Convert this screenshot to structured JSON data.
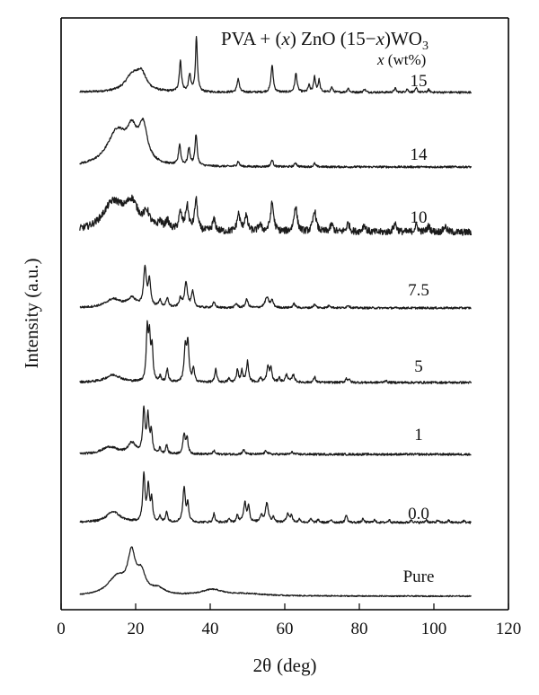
{
  "chart_data": {
    "type": "line",
    "title": "",
    "xlabel": {
      "symbol": "2θ",
      "unit": "(deg)"
    },
    "ylabel": "Intensity (a.u.)",
    "xlim": [
      0,
      120
    ],
    "xticks": [
      "0",
      "20",
      "40",
      "60",
      "80",
      "100",
      "120"
    ],
    "legend": {
      "parts": [
        "PVA + (",
        "x",
        ") ZnO (15−",
        "x",
        ")WO",
        "3"
      ],
      "subtitle_parts": [
        "x",
        " (wt%)"
      ]
    },
    "grid": false,
    "offset_traces": true,
    "series": [
      {
        "name": "15",
        "base": 0.03,
        "peaks": [
          [
            19,
            0.45,
            2.2
          ],
          [
            21.5,
            0.5,
            1.6
          ],
          [
            32,
            0.9,
            0.35
          ],
          [
            34.5,
            0.5,
            0.35
          ],
          [
            36.3,
            1.6,
            0.3
          ],
          [
            47.5,
            0.4,
            0.35
          ],
          [
            56.6,
            0.8,
            0.35
          ],
          [
            63,
            0.55,
            0.35
          ],
          [
            66.5,
            0.2,
            0.3
          ],
          [
            68,
            0.45,
            0.3
          ],
          [
            69.2,
            0.35,
            0.3
          ],
          [
            72.6,
            0.15,
            0.3
          ],
          [
            77,
            0.12,
            0.3
          ],
          [
            81.4,
            0.1,
            0.3
          ],
          [
            89.6,
            0.12,
            0.3
          ],
          [
            92.8,
            0.1,
            0.3
          ],
          [
            95.3,
            0.12,
            0.3
          ],
          [
            98.6,
            0.08,
            0.3
          ]
        ],
        "noise": 0.03
      },
      {
        "name": "14",
        "base": 0.0,
        "peaks": [
          [
            15,
            1.0,
            3.2
          ],
          [
            19,
            0.8,
            1.6
          ],
          [
            22,
            1.05,
            1.4
          ],
          [
            31.8,
            0.6,
            0.35
          ],
          [
            34.3,
            0.5,
            0.35
          ],
          [
            36.2,
            0.9,
            0.35
          ],
          [
            47.5,
            0.15,
            0.35
          ],
          [
            56.6,
            0.2,
            0.35
          ],
          [
            62.9,
            0.12,
            0.35
          ],
          [
            68,
            0.1,
            0.3
          ]
        ],
        "noise": 0.03
      },
      {
        "name": "10",
        "base": 0.1,
        "peaks": [
          [
            14,
            1.0,
            3.4
          ],
          [
            19,
            0.85,
            2.0
          ],
          [
            23,
            0.5,
            1.0
          ],
          [
            26.5,
            0.25,
            0.6
          ],
          [
            28.5,
            0.3,
            0.6
          ],
          [
            32,
            0.6,
            0.5
          ],
          [
            33.8,
            0.85,
            0.5
          ],
          [
            36.2,
            1.1,
            0.45
          ],
          [
            41,
            0.4,
            0.5
          ],
          [
            47.6,
            0.6,
            0.5
          ],
          [
            49.6,
            0.55,
            0.5
          ],
          [
            53.3,
            0.25,
            0.5
          ],
          [
            56.6,
            1.0,
            0.5
          ],
          [
            62.9,
            0.9,
            0.5
          ],
          [
            68,
            0.75,
            0.5
          ],
          [
            72.6,
            0.25,
            0.5
          ],
          [
            77,
            0.3,
            0.5
          ],
          [
            81.3,
            0.25,
            0.5
          ],
          [
            89.6,
            0.3,
            0.5
          ],
          [
            95.3,
            0.25,
            0.5
          ],
          [
            98.6,
            0.2,
            0.5
          ],
          [
            103,
            0.2,
            0.5
          ]
        ],
        "noise": 0.12
      },
      {
        "name": "7.5",
        "base": 0.0,
        "peaks": [
          [
            14,
            0.25,
            2.5
          ],
          [
            19,
            0.25,
            1.5
          ],
          [
            22.5,
            1.1,
            0.45
          ],
          [
            23.7,
            0.75,
            0.4
          ],
          [
            26.5,
            0.2,
            0.4
          ],
          [
            28.5,
            0.25,
            0.4
          ],
          [
            32,
            0.25,
            0.4
          ],
          [
            33.5,
            0.75,
            0.45
          ],
          [
            35.3,
            0.45,
            0.4
          ],
          [
            41,
            0.15,
            0.4
          ],
          [
            47,
            0.12,
            0.4
          ],
          [
            49.8,
            0.25,
            0.4
          ],
          [
            55.2,
            0.3,
            0.6
          ],
          [
            56.6,
            0.2,
            0.4
          ],
          [
            62.5,
            0.12,
            0.4
          ],
          [
            68,
            0.1,
            0.4
          ],
          [
            72,
            0.08,
            0.4
          ],
          [
            77,
            0.08,
            0.4
          ]
        ],
        "noise": 0.03
      },
      {
        "name": "5",
        "base": 0.0,
        "peaks": [
          [
            14,
            0.2,
            2.5
          ],
          [
            23.1,
            1.35,
            0.3
          ],
          [
            23.7,
            1.1,
            0.3
          ],
          [
            24.4,
            0.9,
            0.3
          ],
          [
            26.6,
            0.15,
            0.3
          ],
          [
            28.5,
            0.35,
            0.3
          ],
          [
            33.3,
            0.9,
            0.35
          ],
          [
            34,
            1.0,
            0.35
          ],
          [
            35.5,
            0.35,
            0.3
          ],
          [
            41.5,
            0.35,
            0.3
          ],
          [
            45,
            0.1,
            0.3
          ],
          [
            47.3,
            0.35,
            0.3
          ],
          [
            48.5,
            0.3,
            0.3
          ],
          [
            50,
            0.55,
            0.35
          ],
          [
            53.5,
            0.12,
            0.3
          ],
          [
            55.5,
            0.4,
            0.4
          ],
          [
            56.3,
            0.35,
            0.3
          ],
          [
            58.5,
            0.12,
            0.3
          ],
          [
            60.5,
            0.2,
            0.4
          ],
          [
            62.3,
            0.2,
            0.4
          ],
          [
            68,
            0.15,
            0.3
          ],
          [
            76.5,
            0.1,
            0.3
          ],
          [
            77.2,
            0.08,
            0.3
          ],
          [
            87,
            0.06,
            0.3
          ]
        ],
        "noise": 0.03
      },
      {
        "name": "1",
        "base": 0.0,
        "peaks": [
          [
            13,
            0.2,
            2.5
          ],
          [
            19,
            0.3,
            1.2
          ],
          [
            22.2,
            1.2,
            0.35
          ],
          [
            23.3,
            1.0,
            0.35
          ],
          [
            24.2,
            0.6,
            0.3
          ],
          [
            26.5,
            0.15,
            0.3
          ],
          [
            28.3,
            0.25,
            0.3
          ],
          [
            33,
            0.55,
            0.35
          ],
          [
            33.8,
            0.45,
            0.3
          ],
          [
            41,
            0.1,
            0.3
          ],
          [
            49,
            0.12,
            0.4
          ],
          [
            55,
            0.1,
            0.4
          ],
          [
            62,
            0.06,
            0.4
          ]
        ],
        "noise": 0.03
      },
      {
        "name": "0.0",
        "base": 0.0,
        "peaks": [
          [
            14,
            0.3,
            2.2
          ],
          [
            22.2,
            1.3,
            0.35
          ],
          [
            23.4,
            1.0,
            0.35
          ],
          [
            24.3,
            0.6,
            0.3
          ],
          [
            26.5,
            0.15,
            0.3
          ],
          [
            28.3,
            0.3,
            0.3
          ],
          [
            33,
            0.95,
            0.4
          ],
          [
            34,
            0.5,
            0.3
          ],
          [
            41,
            0.25,
            0.3
          ],
          [
            45,
            0.1,
            0.3
          ],
          [
            47.3,
            0.2,
            0.3
          ],
          [
            49.3,
            0.55,
            0.4
          ],
          [
            50.3,
            0.45,
            0.3
          ],
          [
            53.7,
            0.2,
            0.4
          ],
          [
            55.2,
            0.55,
            0.45
          ],
          [
            57,
            0.15,
            0.3
          ],
          [
            60.8,
            0.25,
            0.4
          ],
          [
            61.8,
            0.2,
            0.3
          ],
          [
            64,
            0.1,
            0.3
          ],
          [
            67,
            0.1,
            0.3
          ],
          [
            69,
            0.08,
            0.3
          ],
          [
            72.5,
            0.08,
            0.3
          ],
          [
            76.5,
            0.22,
            0.3
          ],
          [
            81,
            0.1,
            0.3
          ],
          [
            84,
            0.08,
            0.3
          ],
          [
            88,
            0.08,
            0.3
          ],
          [
            94,
            0.08,
            0.3
          ],
          [
            98,
            0.08,
            0.3
          ],
          [
            101,
            0.06,
            0.3
          ],
          [
            104,
            0.06,
            0.3
          ],
          [
            108,
            0.05,
            0.3
          ]
        ],
        "noise": 0.03
      },
      {
        "name": "Pure",
        "base": 0.0,
        "peaks": [
          [
            15,
            0.45,
            3.0
          ],
          [
            18.9,
            0.95,
            1.2
          ],
          [
            21.5,
            0.5,
            1.4
          ],
          [
            26,
            0.15,
            2.0
          ],
          [
            40.5,
            0.15,
            3.5
          ],
          [
            50,
            0.05,
            6.0
          ]
        ],
        "noise": 0.015
      }
    ],
    "note": "Peaks are [2θ (deg), relative intensity (a.u.), width (deg)]; traces span 2θ = 5–110 deg and are vertically offset."
  }
}
